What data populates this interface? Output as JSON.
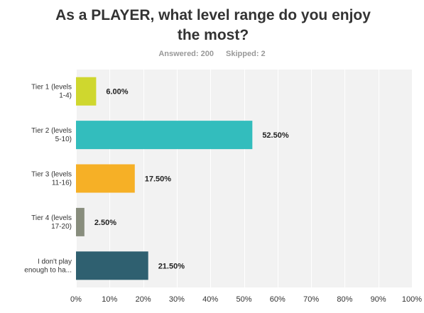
{
  "title": "As a PLAYER, what level range do you enjoy the most?",
  "answered": "Answered: 200",
  "skipped": "Skipped: 2",
  "colors": {
    "background": "#ffffff",
    "plot_background": "#f2f2f2",
    "grid": "#ffffff",
    "axis_text": "#333333",
    "stats_text": "#999999"
  },
  "chart_data": {
    "type": "bar",
    "orientation": "horizontal",
    "title": "As a PLAYER, what level range do you enjoy the most?",
    "categories": [
      [
        "Tier 1 (levels",
        "1-4)"
      ],
      [
        "Tier 2 (levels",
        "5-10)"
      ],
      [
        "Tier 3 (levels",
        "11-16)"
      ],
      [
        "Tier 4 (levels",
        "17-20)"
      ],
      [
        "I don't play",
        "enough to ha..."
      ]
    ],
    "values": [
      6.0,
      52.5,
      17.5,
      2.5,
      21.5
    ],
    "value_labels": [
      "6.00%",
      "52.50%",
      "17.50%",
      "2.50%",
      "21.50%"
    ],
    "colors": [
      "#cfd72e",
      "#33bdbd",
      "#f6b026",
      "#888d7d",
      "#2f6070"
    ],
    "xlim": [
      0,
      100
    ],
    "xticks": [
      "0%",
      "10%",
      "20%",
      "30%",
      "40%",
      "50%",
      "60%",
      "70%",
      "80%",
      "90%",
      "100%"
    ],
    "grid": true,
    "legend": "none"
  }
}
